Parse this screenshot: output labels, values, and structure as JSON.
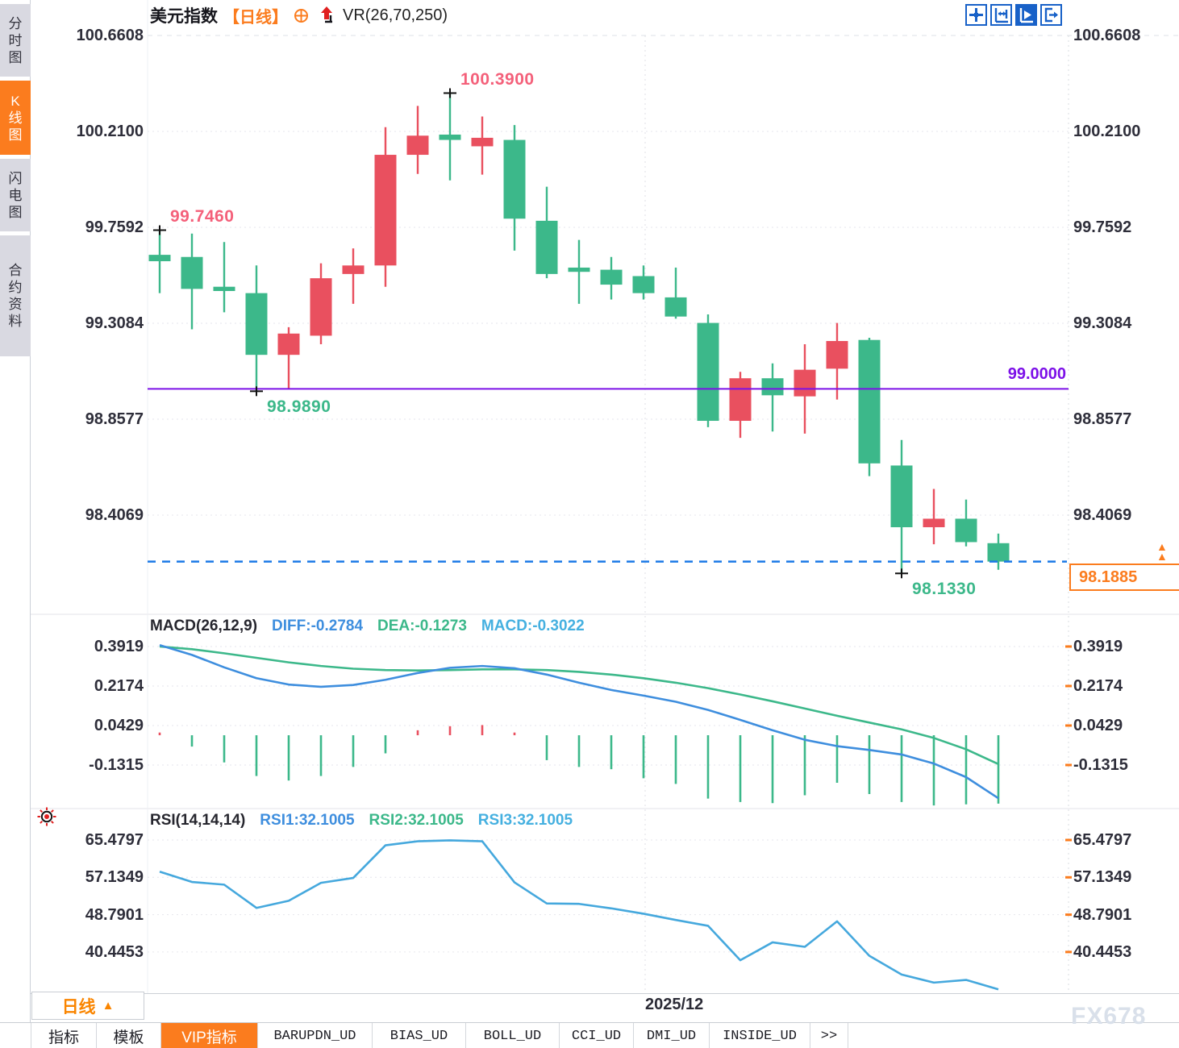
{
  "header": {
    "symbol": "美元指数",
    "period_tag": "【日线】",
    "indicator": "VR(26,70,250)"
  },
  "toolbar": {
    "icons": [
      {
        "name": "pan-crosshair",
        "active": false
      },
      {
        "name": "axis-range",
        "active": false
      },
      {
        "name": "axis-play",
        "active": true
      },
      {
        "name": "exit-chart",
        "active": false
      }
    ]
  },
  "sidebar": {
    "items": [
      {
        "label": "分时图",
        "active": false
      },
      {
        "label": "K线图",
        "active": true
      },
      {
        "label": "闪电图",
        "active": false
      },
      {
        "label": "合约资料",
        "active": false
      }
    ]
  },
  "colors": {
    "up_red": "#e9505f",
    "down_green": "#3cb88a",
    "accent_orange": "#fb7c1e",
    "support_purple": "#7c10e8",
    "last_price_blue": "#1b79e6",
    "diff_blue": "#3e8ede",
    "dea_green": "#3cb88a",
    "macd_cyan": "#45b0e0",
    "rsi_line": "#45a8dd",
    "annotation_red": "#f4607a",
    "annotation_green": "#3cb88a"
  },
  "macd_header": {
    "name": "MACD(26,12,9)",
    "diff": "DIFF:-0.2784",
    "dea": "DEA:-0.1273",
    "macd": "MACD:-0.3022"
  },
  "rsi_header": {
    "name": "RSI(14,14,14)",
    "rsi1": "RSI1:32.1005",
    "rsi2": "RSI2:32.1005",
    "rsi3": "RSI3:32.1005"
  },
  "x_axis": {
    "label": "2025/12"
  },
  "footer": {
    "period_selector": {
      "label": "日线",
      "arrow": "▲"
    },
    "tabs": [
      {
        "label": "指标",
        "active": false,
        "mono": false
      },
      {
        "label": "模板",
        "active": false,
        "mono": false
      },
      {
        "label": "VIP指标",
        "active": true,
        "mono": false
      },
      {
        "label": "BARUPDN_UD",
        "active": false,
        "mono": true
      },
      {
        "label": "BIAS_UD",
        "active": false,
        "mono": true
      },
      {
        "label": "BOLL_UD",
        "active": false,
        "mono": true
      },
      {
        "label": "CCI_UD",
        "active": false,
        "mono": true
      },
      {
        "label": "DMI_UD",
        "active": false,
        "mono": true
      },
      {
        "label": "INSIDE_UD",
        "active": false,
        "mono": true
      },
      {
        "label": ">>",
        "active": false,
        "mono": true
      }
    ]
  },
  "watermark": "FX678",
  "chart_data": [
    {
      "type": "candlestick",
      "title": "美元指数 日线 VR(26,70,250)",
      "y_ticks": [
        "100.6608",
        "100.2100",
        "99.7592",
        "99.3084",
        "98.8577",
        "98.4069"
      ],
      "ylim": [
        98.1,
        100.75
      ],
      "grid": "dotted",
      "legend_position": "none",
      "support_line": {
        "value": 99.0,
        "label": "99.0000"
      },
      "last_price_line": {
        "value": 98.1885,
        "label": "98.1885"
      },
      "annotations": [
        {
          "label": "99.7460",
          "candle_index": 0,
          "anchor": "high",
          "color": "red"
        },
        {
          "label": "100.3900",
          "candle_index": 9,
          "anchor": "high",
          "color": "red"
        },
        {
          "label": "98.9890",
          "candle_index": 3,
          "anchor": "low",
          "color": "green"
        },
        {
          "label": "98.1330",
          "candle_index": 23,
          "anchor": "low",
          "color": "green"
        }
      ],
      "candles": [
        {
          "o": 99.63,
          "h": 99.746,
          "l": 99.45,
          "c": 99.6
        },
        {
          "o": 99.62,
          "h": 99.73,
          "l": 99.28,
          "c": 99.47
        },
        {
          "o": 99.48,
          "h": 99.69,
          "l": 99.36,
          "c": 99.46
        },
        {
          "o": 99.45,
          "h": 99.58,
          "l": 98.989,
          "c": 99.16
        },
        {
          "o": 99.16,
          "h": 99.29,
          "l": 99.0,
          "c": 99.26
        },
        {
          "o": 99.25,
          "h": 99.59,
          "l": 99.21,
          "c": 99.52
        },
        {
          "o": 99.54,
          "h": 99.66,
          "l": 99.4,
          "c": 99.58
        },
        {
          "o": 99.58,
          "h": 100.23,
          "l": 99.48,
          "c": 100.1
        },
        {
          "o": 100.1,
          "h": 100.33,
          "l": 100.01,
          "c": 100.19
        },
        {
          "o": 100.195,
          "h": 100.39,
          "l": 99.98,
          "c": 100.17
        },
        {
          "o": 100.14,
          "h": 100.28,
          "l": 100.007,
          "c": 100.18
        },
        {
          "o": 100.17,
          "h": 100.24,
          "l": 99.65,
          "c": 99.8
        },
        {
          "o": 99.79,
          "h": 99.95,
          "l": 99.52,
          "c": 99.54
        },
        {
          "o": 99.57,
          "h": 99.7,
          "l": 99.4,
          "c": 99.55
        },
        {
          "o": 99.56,
          "h": 99.62,
          "l": 99.42,
          "c": 99.49
        },
        {
          "o": 99.53,
          "h": 99.58,
          "l": 99.42,
          "c": 99.45
        },
        {
          "o": 99.43,
          "h": 99.57,
          "l": 99.33,
          "c": 99.34
        },
        {
          "o": 99.31,
          "h": 99.35,
          "l": 98.82,
          "c": 98.85
        },
        {
          "o": 98.85,
          "h": 99.08,
          "l": 98.77,
          "c": 99.05
        },
        {
          "o": 99.05,
          "h": 99.12,
          "l": 98.8,
          "c": 98.97
        },
        {
          "o": 98.965,
          "h": 99.21,
          "l": 98.79,
          "c": 99.09
        },
        {
          "o": 99.095,
          "h": 99.31,
          "l": 98.95,
          "c": 99.225
        },
        {
          "o": 99.23,
          "h": 99.24,
          "l": 98.59,
          "c": 98.65
        },
        {
          "o": 98.64,
          "h": 98.76,
          "l": 98.133,
          "c": 98.35
        },
        {
          "o": 98.35,
          "h": 98.53,
          "l": 98.27,
          "c": 98.39
        },
        {
          "o": 98.39,
          "h": 98.48,
          "l": 98.26,
          "c": 98.28
        },
        {
          "o": 98.275,
          "h": 98.32,
          "l": 98.15,
          "c": 98.1885
        }
      ]
    },
    {
      "type": "bar",
      "subtype": "macd",
      "title": "MACD(26,12,9)",
      "y_ticks": [
        "0.3919",
        "0.2174",
        "0.0429",
        "-0.1315"
      ],
      "values_last": {
        "diff": -0.2784,
        "dea": -0.1273,
        "macd": -0.3022
      },
      "diff": [
        0.398,
        0.355,
        0.3,
        0.252,
        0.224,
        0.214,
        0.222,
        0.245,
        0.275,
        0.298,
        0.306,
        0.296,
        0.268,
        0.232,
        0.2,
        0.175,
        0.148,
        0.112,
        0.068,
        0.022,
        -0.02,
        -0.048,
        -0.065,
        -0.085,
        -0.125,
        -0.185,
        -0.2784
      ],
      "dea": [
        0.392,
        0.38,
        0.362,
        0.342,
        0.322,
        0.306,
        0.294,
        0.288,
        0.286,
        0.288,
        0.291,
        0.291,
        0.288,
        0.28,
        0.268,
        0.252,
        0.232,
        0.208,
        0.18,
        0.15,
        0.118,
        0.086,
        0.056,
        0.026,
        -0.012,
        -0.062,
        -0.1273
      ],
      "hist": [
        0.012,
        -0.05,
        -0.12,
        -0.18,
        -0.2,
        -0.18,
        -0.14,
        -0.08,
        0.022,
        0.04,
        0.045,
        0.012,
        -0.11,
        -0.14,
        -0.15,
        -0.19,
        -0.215,
        -0.28,
        -0.295,
        -0.3,
        -0.265,
        -0.21,
        -0.26,
        -0.295,
        -0.31,
        -0.305,
        -0.302
      ]
    },
    {
      "type": "line",
      "subtype": "rsi",
      "title": "RSI(14,14,14)",
      "y_ticks": [
        "65.4797",
        "57.1349",
        "48.7901",
        "40.4453"
      ],
      "values_last": {
        "rsi1": 32.1005,
        "rsi2": 32.1005,
        "rsi3": 32.1005
      },
      "rsi": [
        58.4,
        56.1,
        55.5,
        50.3,
        51.9,
        55.9,
        57.0,
        64.3,
        65.2,
        65.4,
        65.2,
        56.0,
        51.3,
        51.2,
        50.2,
        49.0,
        47.6,
        46.3,
        38.6,
        42.6,
        41.6,
        47.3,
        39.6,
        35.4,
        33.6,
        34.2,
        32.1
      ]
    }
  ]
}
